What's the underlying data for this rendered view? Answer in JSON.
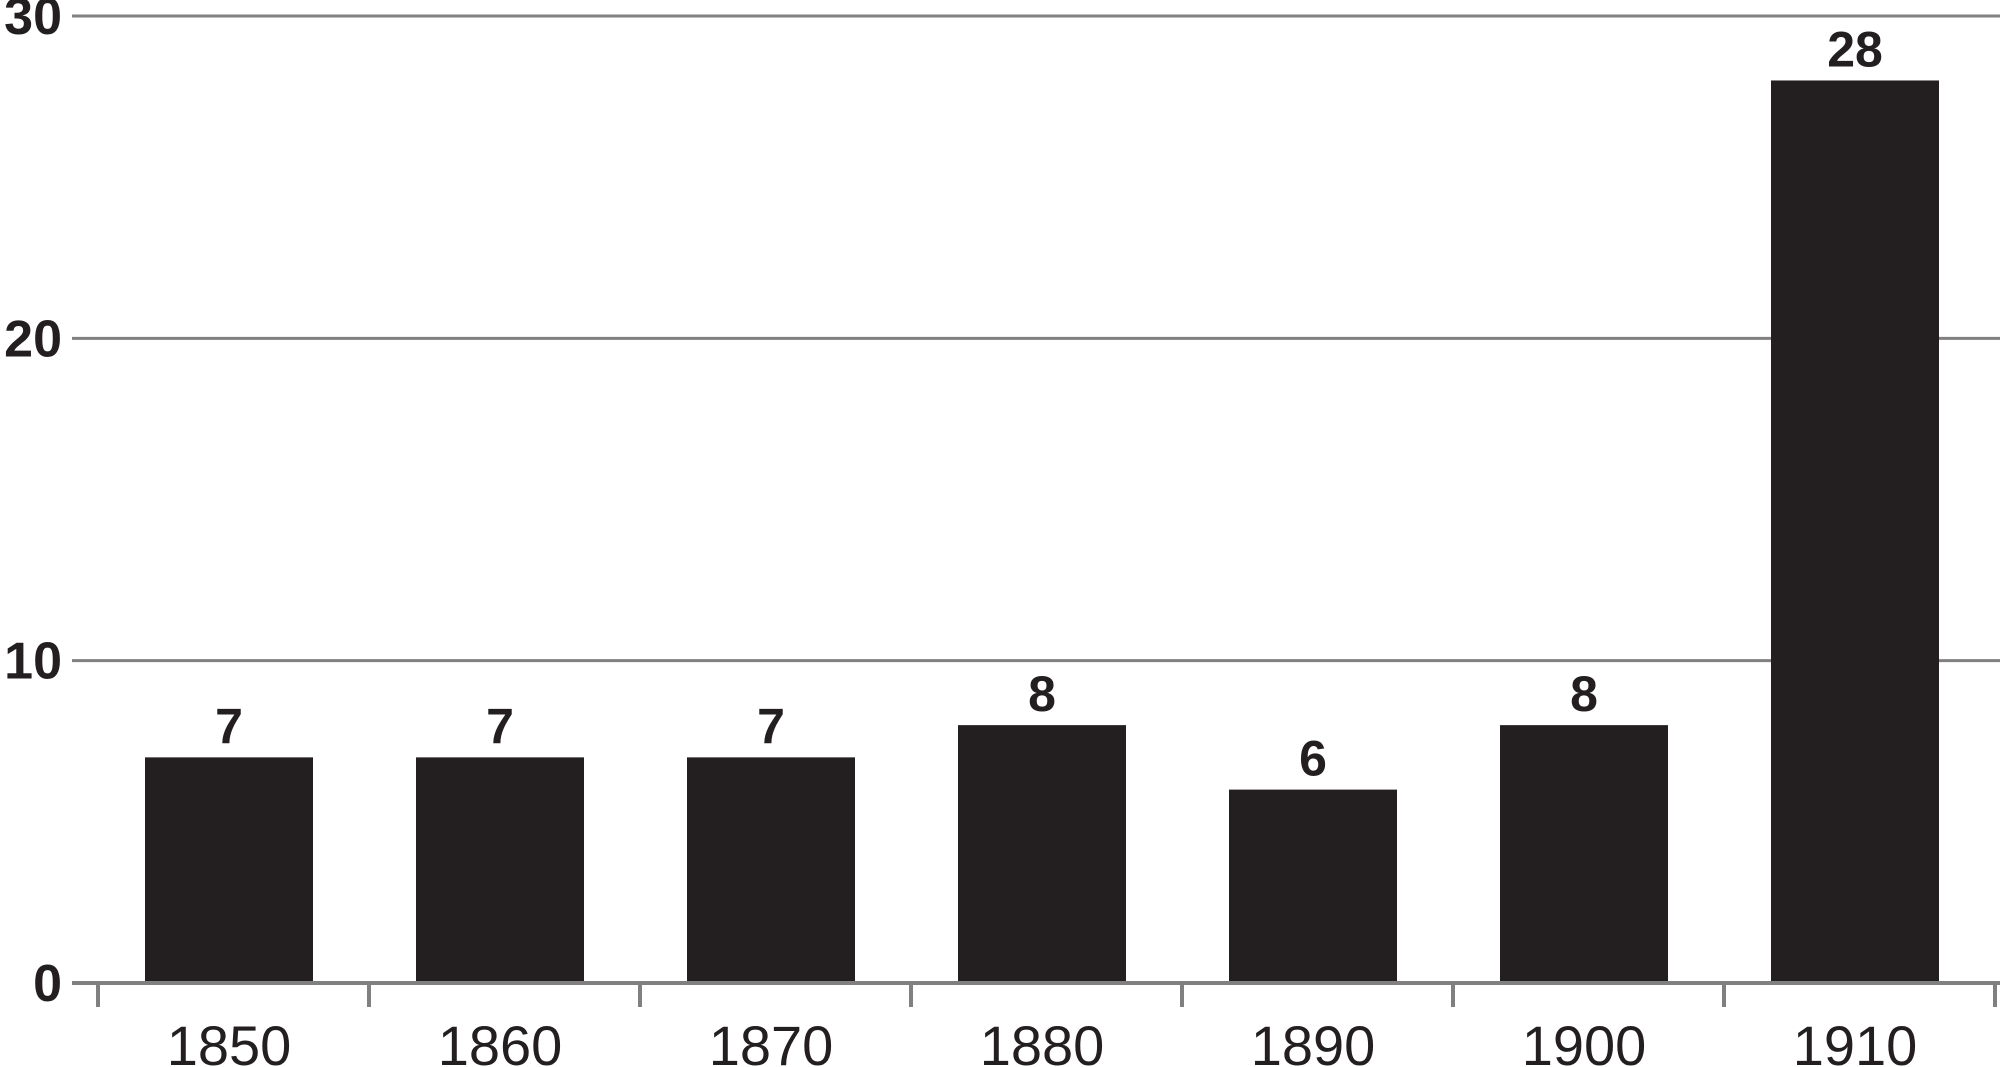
{
  "chart_data": {
    "type": "bar",
    "categories": [
      "1850",
      "1860",
      "1870",
      "1880",
      "1890",
      "1900",
      "1910"
    ],
    "values": [
      7,
      7,
      7,
      8,
      6,
      8,
      28
    ],
    "data_labels": [
      "7",
      "7",
      "7",
      "8",
      "6",
      "8",
      "28"
    ],
    "y_ticks": [
      0,
      10,
      20,
      30
    ],
    "y_tick_labels": [
      "0",
      "10",
      "20",
      "30"
    ],
    "ylim": [
      0,
      30
    ],
    "title": "",
    "xlabel": "",
    "ylabel": "",
    "grid": true,
    "legend": "none",
    "colors": {
      "bar": "#231f20",
      "grid": "#808080",
      "text": "#231f20"
    }
  }
}
